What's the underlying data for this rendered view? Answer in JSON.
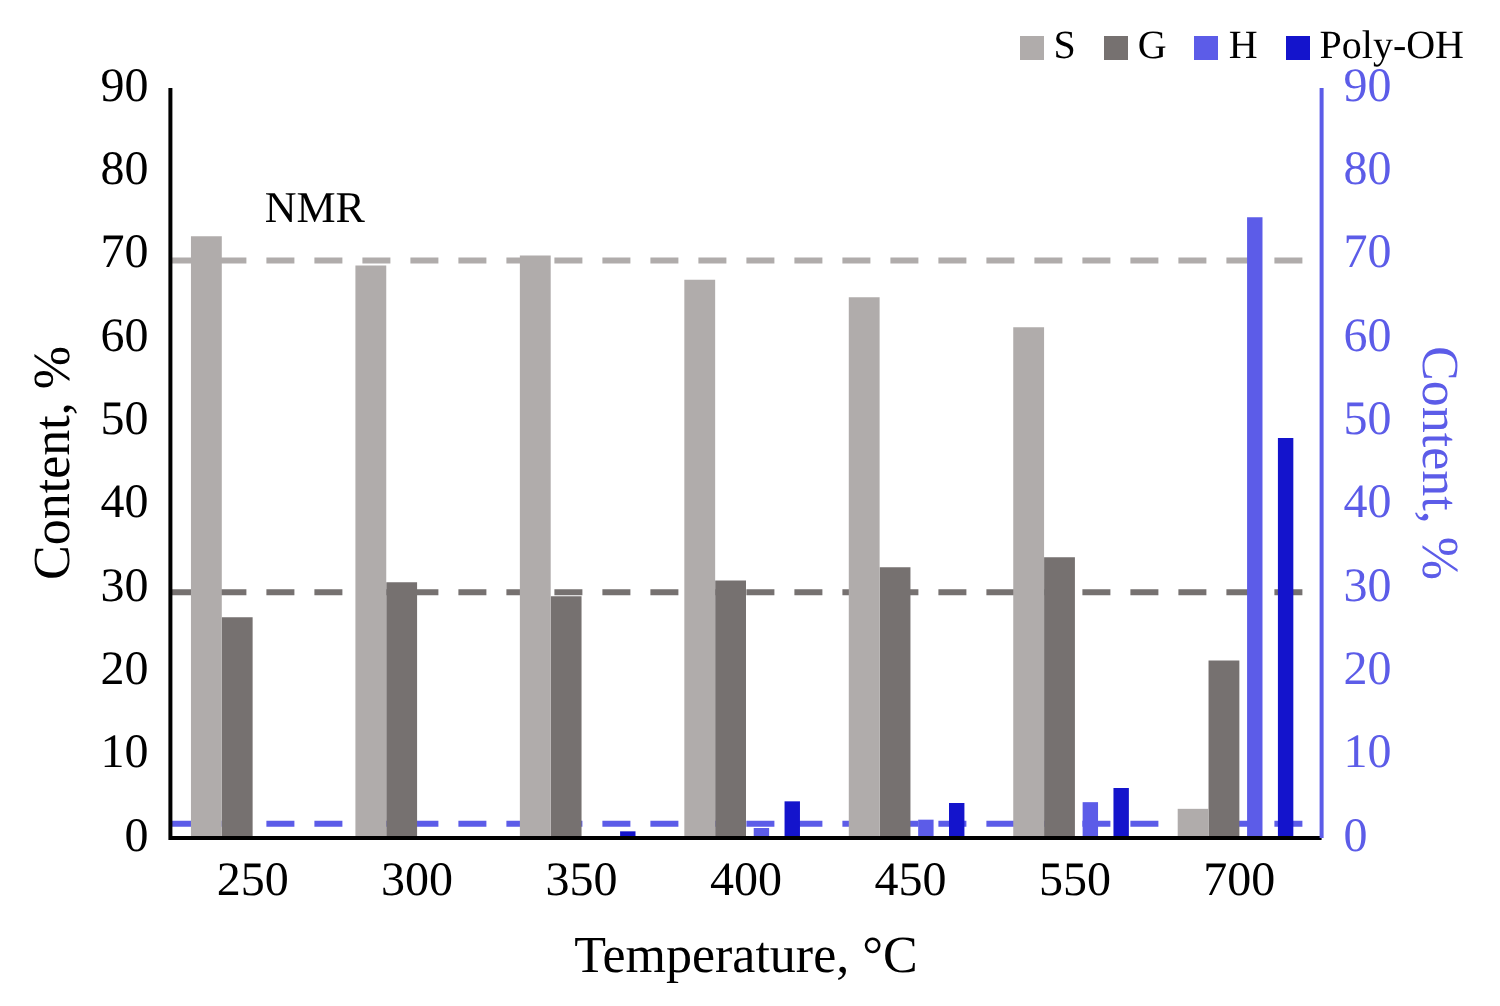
{
  "chart_data": {
    "type": "bar",
    "xlabel": "Temperature, °C",
    "ylabel": "Content, %",
    "y2label": "Content, %",
    "categories": [
      "250",
      "300",
      "350",
      "400",
      "450",
      "550",
      "700"
    ],
    "series": [
      {
        "name": "S",
        "color": "#b0acab",
        "values": [
          72.2,
          68.7,
          69.9,
          67.0,
          64.9,
          61.3,
          3.5
        ]
      },
      {
        "name": "G",
        "color": "#767170",
        "values": [
          26.5,
          30.7,
          29.0,
          30.9,
          32.5,
          33.7,
          21.3
        ]
      },
      {
        "name": "H",
        "color": "#5c5ce8",
        "axis": "y2",
        "values": [
          0,
          0,
          0,
          1.2,
          2.2,
          4.3,
          74.5
        ]
      },
      {
        "name": "Poly-OH",
        "color": "#1414cc",
        "axis": "y2",
        "values": [
          0,
          0,
          0.8,
          4.4,
          4.2,
          6.0,
          48
        ]
      }
    ],
    "ylim": [
      0,
      90
    ],
    "yticks": [
      0,
      10,
      20,
      30,
      40,
      50,
      60,
      70,
      80,
      90
    ],
    "y2lim": [
      0,
      90
    ],
    "y2ticks": [
      0,
      10,
      20,
      30,
      40,
      50,
      60,
      70,
      80,
      90
    ],
    "ref_lines": [
      {
        "axis": "y",
        "value": 69.3,
        "label": "NMR",
        "color": "#b0acab",
        "line_style": "dashed"
      },
      {
        "axis": "y",
        "value": 29.5,
        "color": "#767170",
        "line_style": "dashed"
      },
      {
        "axis": "y2",
        "value": 1.7,
        "color": "#5c5ce8",
        "line_style": "dashed"
      }
    ],
    "legend": "top right",
    "grid": false
  }
}
